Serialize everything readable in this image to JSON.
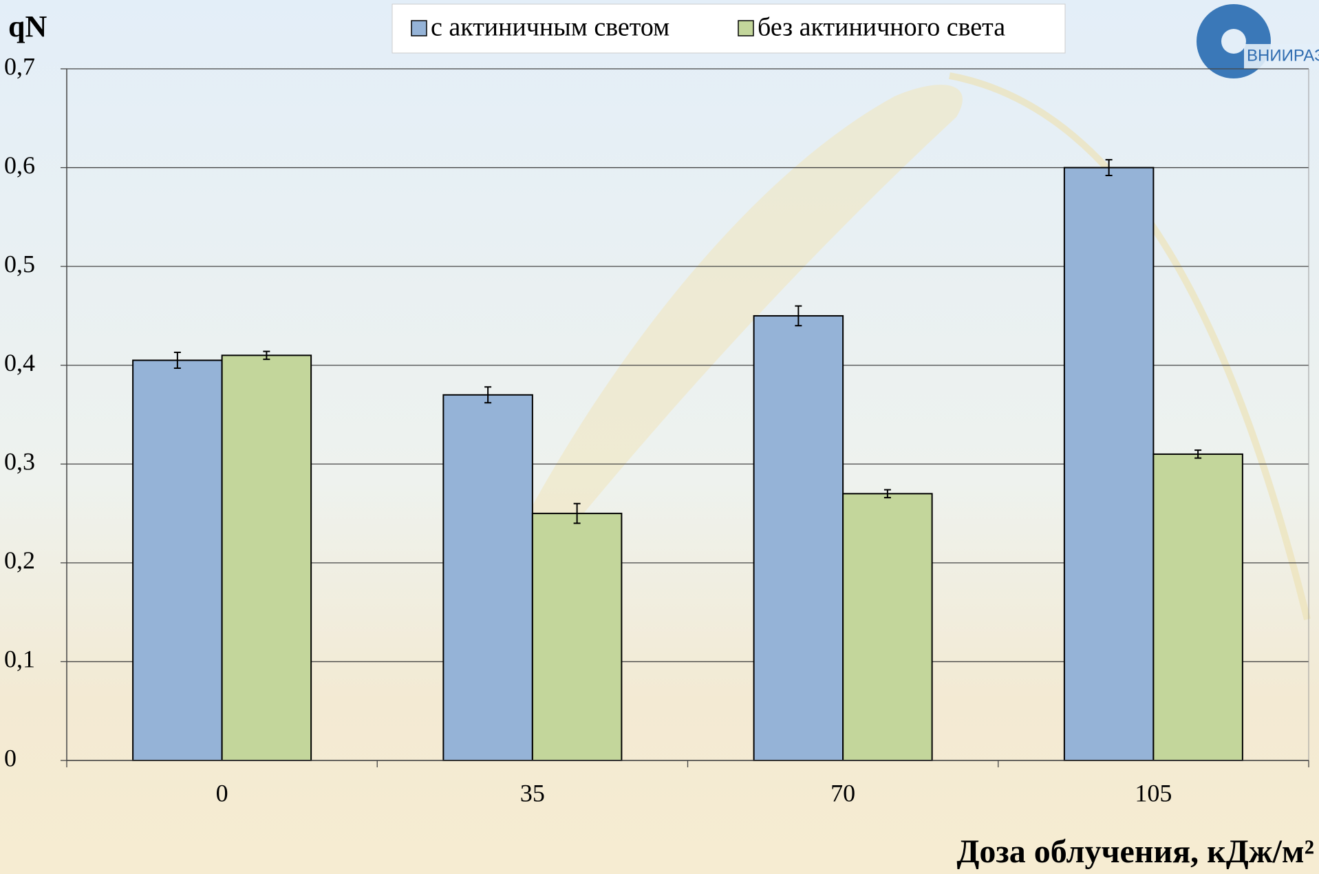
{
  "chart_data": {
    "type": "bar",
    "y_label": "qN",
    "x_label": "Доза облучения, кДж/м²",
    "logo_text": "ВНИИРАЭ",
    "categories": [
      "0",
      "35",
      "70",
      "105"
    ],
    "series": [
      {
        "name": "с актиничным светом",
        "color": "#95b3d7",
        "values": [
          0.405,
          0.37,
          0.45,
          0.6
        ],
        "errors": [
          0.008,
          0.008,
          0.01,
          0.008
        ]
      },
      {
        "name": "без актиничного света",
        "color": "#c3d69b",
        "values": [
          0.41,
          0.25,
          0.27,
          0.31
        ],
        "errors": [
          0.004,
          0.01,
          0.004,
          0.004
        ]
      }
    ],
    "ylim": [
      0,
      0.7
    ],
    "yticks": [
      0,
      {
        "value": 0.1,
        "label": "0,1"
      },
      {
        "value": 0.2,
        "label": "0,2"
      },
      {
        "value": 0.3,
        "label": "0,3"
      },
      {
        "value": 0.4,
        "label": "0,4"
      },
      {
        "value": 0.5,
        "label": "0,5"
      },
      {
        "value": 0.6,
        "label": "0,6"
      },
      {
        "value": 0.7,
        "label": "0,7"
      }
    ],
    "grid": true,
    "legend": "top"
  }
}
